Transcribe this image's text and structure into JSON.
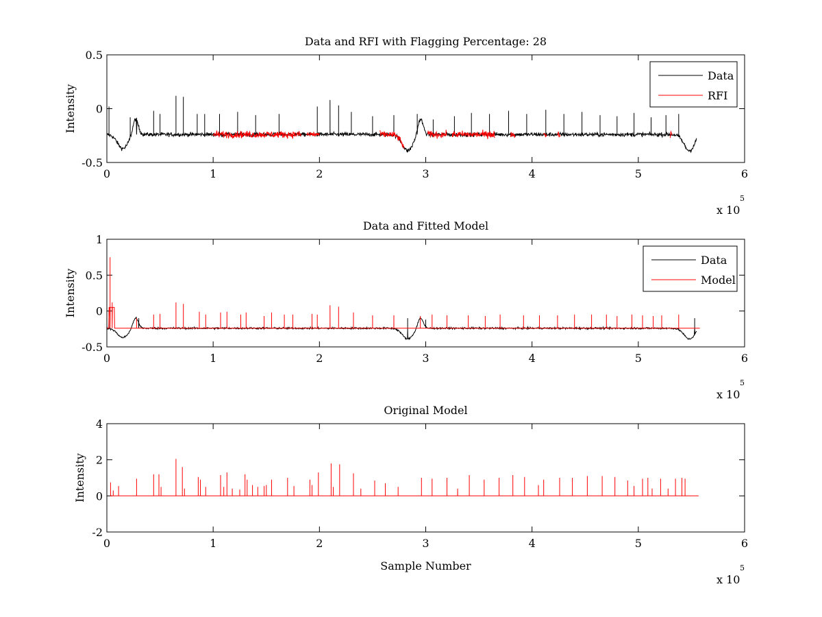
{
  "figure": {
    "background": "#ffffff"
  },
  "colors": {
    "data": "#000000",
    "rfi": "#ff0000",
    "model": "#ff0000",
    "axis": "#000000"
  },
  "chart_data": [
    {
      "type": "line",
      "title": "Data and RFI with Flagging Percentage: 28",
      "xlabel": "",
      "ylabel": "Intensity",
      "xlim": [
        0,
        600000
      ],
      "ylim": [
        -0.5,
        0.5
      ],
      "xticks": [
        0,
        1,
        2,
        3,
        4,
        5,
        6
      ],
      "yticks": [
        -0.5,
        0,
        0.5
      ],
      "xtick_labels": [
        "0",
        "1",
        "2",
        "3",
        "4",
        "5",
        "6"
      ],
      "ytick_labels": [
        "-0.5",
        "0",
        "0.5"
      ],
      "x_exponent_label": "x 10",
      "x_exponent_power": "5",
      "legend": {
        "position": "top-right",
        "entries": [
          "Data",
          "RFI"
        ]
      },
      "series": [
        {
          "name": "Data",
          "color": "#000000",
          "x_range": [
            0,
            555000
          ],
          "baseline": -0.24,
          "noise": 0.018,
          "dips": [
            [
              15000,
              -0.37
            ],
            [
              283000,
              -0.39
            ],
            [
              548000,
              -0.39
            ]
          ],
          "spikes": [
            [
              2000,
              0.02
            ],
            [
              22000,
              -0.08
            ],
            [
              28000,
              -0.1
            ],
            [
              44000,
              -0.02
            ],
            [
              50000,
              -0.05
            ],
            [
              65000,
              0.12
            ],
            [
              72000,
              0.11
            ],
            [
              85000,
              -0.05
            ],
            [
              92000,
              -0.05
            ],
            [
              106000,
              -0.05
            ],
            [
              123000,
              -0.03
            ],
            [
              140000,
              -0.06
            ],
            [
              162000,
              -0.05
            ],
            [
              198000,
              0.02
            ],
            [
              210000,
              0.08
            ],
            [
              218000,
              0.03
            ],
            [
              230000,
              -0.03
            ],
            [
              250000,
              -0.07
            ],
            [
              270000,
              -0.06
            ],
            [
              292000,
              -0.05
            ],
            [
              307000,
              -0.1
            ],
            [
              327000,
              -0.07
            ],
            [
              343000,
              -0.04
            ],
            [
              360000,
              -0.05
            ],
            [
              378000,
              -0.02
            ],
            [
              395000,
              -0.05
            ],
            [
              413000,
              -0.01
            ],
            [
              430000,
              -0.05
            ],
            [
              447000,
              -0.03
            ],
            [
              464000,
              -0.06
            ],
            [
              480000,
              -0.07
            ],
            [
              496000,
              -0.04
            ],
            [
              512000,
              -0.08
            ],
            [
              526000,
              -0.06
            ],
            [
              538000,
              -0.05
            ]
          ]
        },
        {
          "name": "RFI",
          "color": "#ff0000",
          "x_ranges": [
            [
              100000,
              183000
            ],
            [
              188000,
              200000
            ],
            [
              257000,
              280000
            ],
            [
              302000,
              320000
            ],
            [
              325000,
              363000
            ],
            [
              358000,
              365000
            ],
            [
              380000,
              384000
            ],
            [
              411000,
              414000
            ],
            [
              424000,
              427000
            ],
            [
              530000,
              532000
            ]
          ]
        }
      ]
    },
    {
      "type": "line",
      "title": "Data and Fitted Model",
      "xlabel": "",
      "ylabel": "Intensity",
      "xlim": [
        0,
        600000
      ],
      "ylim": [
        -0.5,
        1
      ],
      "xticks": [
        0,
        1,
        2,
        3,
        4,
        5,
        6
      ],
      "yticks": [
        -0.5,
        0,
        0.5,
        1
      ],
      "xtick_labels": [
        "0",
        "1",
        "2",
        "3",
        "4",
        "5",
        "6"
      ],
      "ytick_labels": [
        "-0.5",
        "0",
        "0.5",
        "1"
      ],
      "x_exponent_label": "x 10",
      "x_exponent_power": "5",
      "legend": {
        "position": "top-right",
        "entries": [
          "Data",
          "Model"
        ]
      },
      "series": [
        {
          "name": "Data",
          "color": "#000000",
          "x_range": [
            0,
            555000
          ],
          "baseline": -0.24,
          "noise": 0.012,
          "dips": [
            [
              15000,
              -0.37
            ],
            [
              283000,
              -0.39
            ],
            [
              548000,
              -0.39
            ]
          ],
          "spikes": [
            [
              2000,
              0.0
            ],
            [
              30000,
              -0.1
            ],
            [
              283000,
              -0.1
            ],
            [
              300000,
              -0.12
            ],
            [
              553000,
              -0.1
            ]
          ]
        },
        {
          "name": "Model",
          "color": "#ff0000",
          "x_range": [
            0,
            558000
          ],
          "baseline": -0.24,
          "bump": [
            [
              2000,
              7000,
              0.05
            ]
          ],
          "spikes": [
            [
              3000,
              0.75
            ],
            [
              5000,
              0.12
            ],
            [
              28000,
              -0.1
            ],
            [
              44000,
              -0.05
            ],
            [
              50000,
              -0.04
            ],
            [
              65000,
              0.12
            ],
            [
              72000,
              0.1
            ],
            [
              87000,
              -0.01
            ],
            [
              93000,
              -0.05
            ],
            [
              107000,
              -0.02
            ],
            [
              113000,
              -0.01
            ],
            [
              126000,
              -0.05
            ],
            [
              131000,
              -0.02
            ],
            [
              148000,
              -0.07
            ],
            [
              155000,
              -0.02
            ],
            [
              167000,
              -0.05
            ],
            [
              175000,
              -0.05
            ],
            [
              193000,
              -0.04
            ],
            [
              198000,
              -0.05
            ],
            [
              210000,
              0.08
            ],
            [
              218000,
              0.06
            ],
            [
              232000,
              -0.02
            ],
            [
              250000,
              -0.06
            ],
            [
              270000,
              -0.06
            ],
            [
              295000,
              -0.07
            ],
            [
              306000,
              -0.05
            ],
            [
              320000,
              -0.06
            ],
            [
              340000,
              -0.06
            ],
            [
              356000,
              -0.07
            ],
            [
              370000,
              -0.05
            ],
            [
              392000,
              -0.06
            ],
            [
              407000,
              -0.06
            ],
            [
              424000,
              -0.06
            ],
            [
              440000,
              -0.05
            ],
            [
              456000,
              -0.05
            ],
            [
              470000,
              -0.05
            ],
            [
              480000,
              -0.07
            ],
            [
              494000,
              -0.05
            ],
            [
              504000,
              -0.06
            ],
            [
              514000,
              -0.07
            ],
            [
              522000,
              -0.06
            ],
            [
              538000,
              -0.05
            ]
          ]
        }
      ]
    },
    {
      "type": "line",
      "title": "Original Model",
      "xlabel": "Sample Number",
      "ylabel": "Intensity",
      "xlim": [
        0,
        600000
      ],
      "ylim": [
        -2,
        4
      ],
      "xticks": [
        0,
        1,
        2,
        3,
        4,
        5,
        6
      ],
      "yticks": [
        -2,
        0,
        2,
        4
      ],
      "xtick_labels": [
        "0",
        "1",
        "2",
        "3",
        "4",
        "5",
        "6"
      ],
      "ytick_labels": [
        "-2",
        "0",
        "2",
        "4"
      ],
      "x_exponent_label": "x 10",
      "x_exponent_power": "5",
      "series": [
        {
          "name": "Model",
          "color": "#ff0000",
          "x_range": [
            3000,
            557000
          ],
          "baseline": 0,
          "spikes": [
            [
              3500,
              0.75
            ],
            [
              6000,
              0.3
            ],
            [
              11000,
              0.55
            ],
            [
              28000,
              0.95
            ],
            [
              44000,
              1.2
            ],
            [
              49000,
              1.2
            ],
            [
              51000,
              0.5
            ],
            [
              65000,
              2.05
            ],
            [
              71000,
              1.6
            ],
            [
              73000,
              0.4
            ],
            [
              86000,
              1.05
            ],
            [
              88000,
              0.9
            ],
            [
              93000,
              0.5
            ],
            [
              107000,
              1.15
            ],
            [
              110000,
              0.5
            ],
            [
              113000,
              1.3
            ],
            [
              118000,
              0.4
            ],
            [
              125000,
              0.35
            ],
            [
              130000,
              1.2
            ],
            [
              132000,
              0.9
            ],
            [
              137000,
              0.6
            ],
            [
              142000,
              0.5
            ],
            [
              148000,
              0.55
            ],
            [
              150000,
              0.6
            ],
            [
              155000,
              0.9
            ],
            [
              170000,
              1.0
            ],
            [
              176000,
              0.55
            ],
            [
              191000,
              0.9
            ],
            [
              193000,
              0.6
            ],
            [
              199000,
              1.3
            ],
            [
              211000,
              1.8
            ],
            [
              213000,
              0.5
            ],
            [
              219000,
              1.75
            ],
            [
              232000,
              1.25
            ],
            [
              239000,
              0.4
            ],
            [
              252000,
              0.85
            ],
            [
              262000,
              0.7
            ],
            [
              274000,
              0.5
            ],
            [
              296000,
              1.0
            ],
            [
              306000,
              0.95
            ],
            [
              320000,
              1.0
            ],
            [
              330000,
              0.4
            ],
            [
              341000,
              1.15
            ],
            [
              355000,
              0.9
            ],
            [
              369000,
              1.0
            ],
            [
              382000,
              1.15
            ],
            [
              393000,
              1.05
            ],
            [
              406000,
              0.6
            ],
            [
              411000,
              0.9
            ],
            [
              426000,
              1.0
            ],
            [
              438000,
              1.0
            ],
            [
              452000,
              1.1
            ],
            [
              466000,
              1.1
            ],
            [
              478000,
              1.05
            ],
            [
              490000,
              0.85
            ],
            [
              496000,
              0.55
            ],
            [
              504000,
              0.95
            ],
            [
              509000,
              1.0
            ],
            [
              513000,
              0.4
            ],
            [
              521000,
              0.95
            ],
            [
              528000,
              0.4
            ],
            [
              535000,
              0.95
            ],
            [
              541000,
              1.0
            ],
            [
              544000,
              0.95
            ]
          ]
        }
      ]
    }
  ]
}
